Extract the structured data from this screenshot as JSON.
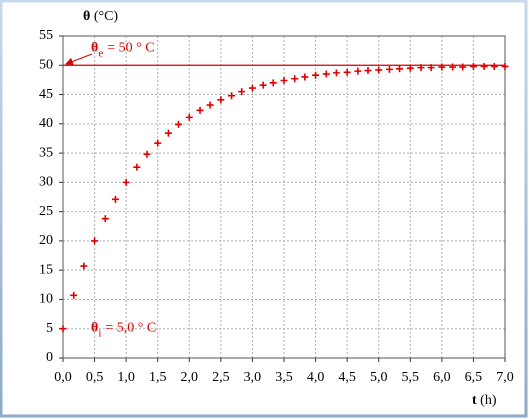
{
  "chart_data": {
    "type": "scatter",
    "y_label": {
      "symbol": "θ",
      "text": "(°C)"
    },
    "x_label": {
      "symbol": "t",
      "text": "(h)"
    },
    "xlim": [
      0,
      7
    ],
    "ylim": [
      0,
      55
    ],
    "xticks": [
      {
        "value": 0,
        "label": "0,0"
      },
      {
        "value": 0.5,
        "label": "0,5"
      },
      {
        "value": 1,
        "label": "1,0"
      },
      {
        "value": 1.5,
        "label": "1,5"
      },
      {
        "value": 2,
        "label": "2,0"
      },
      {
        "value": 2.5,
        "label": "2,5"
      },
      {
        "value": 3,
        "label": "3,0"
      },
      {
        "value": 3.5,
        "label": "3,5"
      },
      {
        "value": 4,
        "label": "4,0"
      },
      {
        "value": 4.5,
        "label": "4,5"
      },
      {
        "value": 5,
        "label": "5,0"
      },
      {
        "value": 5.5,
        "label": "5,5"
      },
      {
        "value": 6,
        "label": "6,0"
      },
      {
        "value": 6.5,
        "label": "6,5"
      },
      {
        "value": 7,
        "label": "7,0"
      }
    ],
    "yticks": [
      0,
      5,
      10,
      15,
      20,
      25,
      30,
      35,
      40,
      45,
      50,
      55
    ],
    "grid": true,
    "color": "#e00000",
    "hline": 50,
    "annotations": [
      {
        "symbol": "θ",
        "sub": "e",
        "text": "= 50 ° C",
        "value": 50
      },
      {
        "symbol": "θ",
        "sub": "i",
        "text": "= 5,0 ° C",
        "value": 5
      }
    ],
    "x": [
      0,
      0.17,
      0.33,
      0.5,
      0.67,
      0.83,
      1,
      1.17,
      1.33,
      1.5,
      1.67,
      1.83,
      2,
      2.17,
      2.33,
      2.5,
      2.67,
      2.83,
      3,
      3.17,
      3.33,
      3.5,
      3.67,
      3.83,
      4,
      4.17,
      4.33,
      4.5,
      4.67,
      4.83,
      5,
      5.17,
      5.33,
      5.5,
      5.67,
      5.83,
      6,
      6.17,
      6.33,
      6.5,
      6.67,
      6.83,
      7
    ],
    "values": [
      5.0,
      10.7,
      15.7,
      20.0,
      23.8,
      27.1,
      30.0,
      32.6,
      34.8,
      36.7,
      38.4,
      39.9,
      41.1,
      42.3,
      43.2,
      44.1,
      44.8,
      45.5,
      46.1,
      46.6,
      47.0,
      47.4,
      47.7,
      48.0,
      48.3,
      48.5,
      48.7,
      48.8,
      49.0,
      49.1,
      49.2,
      49.3,
      49.4,
      49.5,
      49.6,
      49.6,
      49.7,
      49.7,
      49.7,
      49.8,
      49.8,
      49.8,
      49.8
    ]
  }
}
